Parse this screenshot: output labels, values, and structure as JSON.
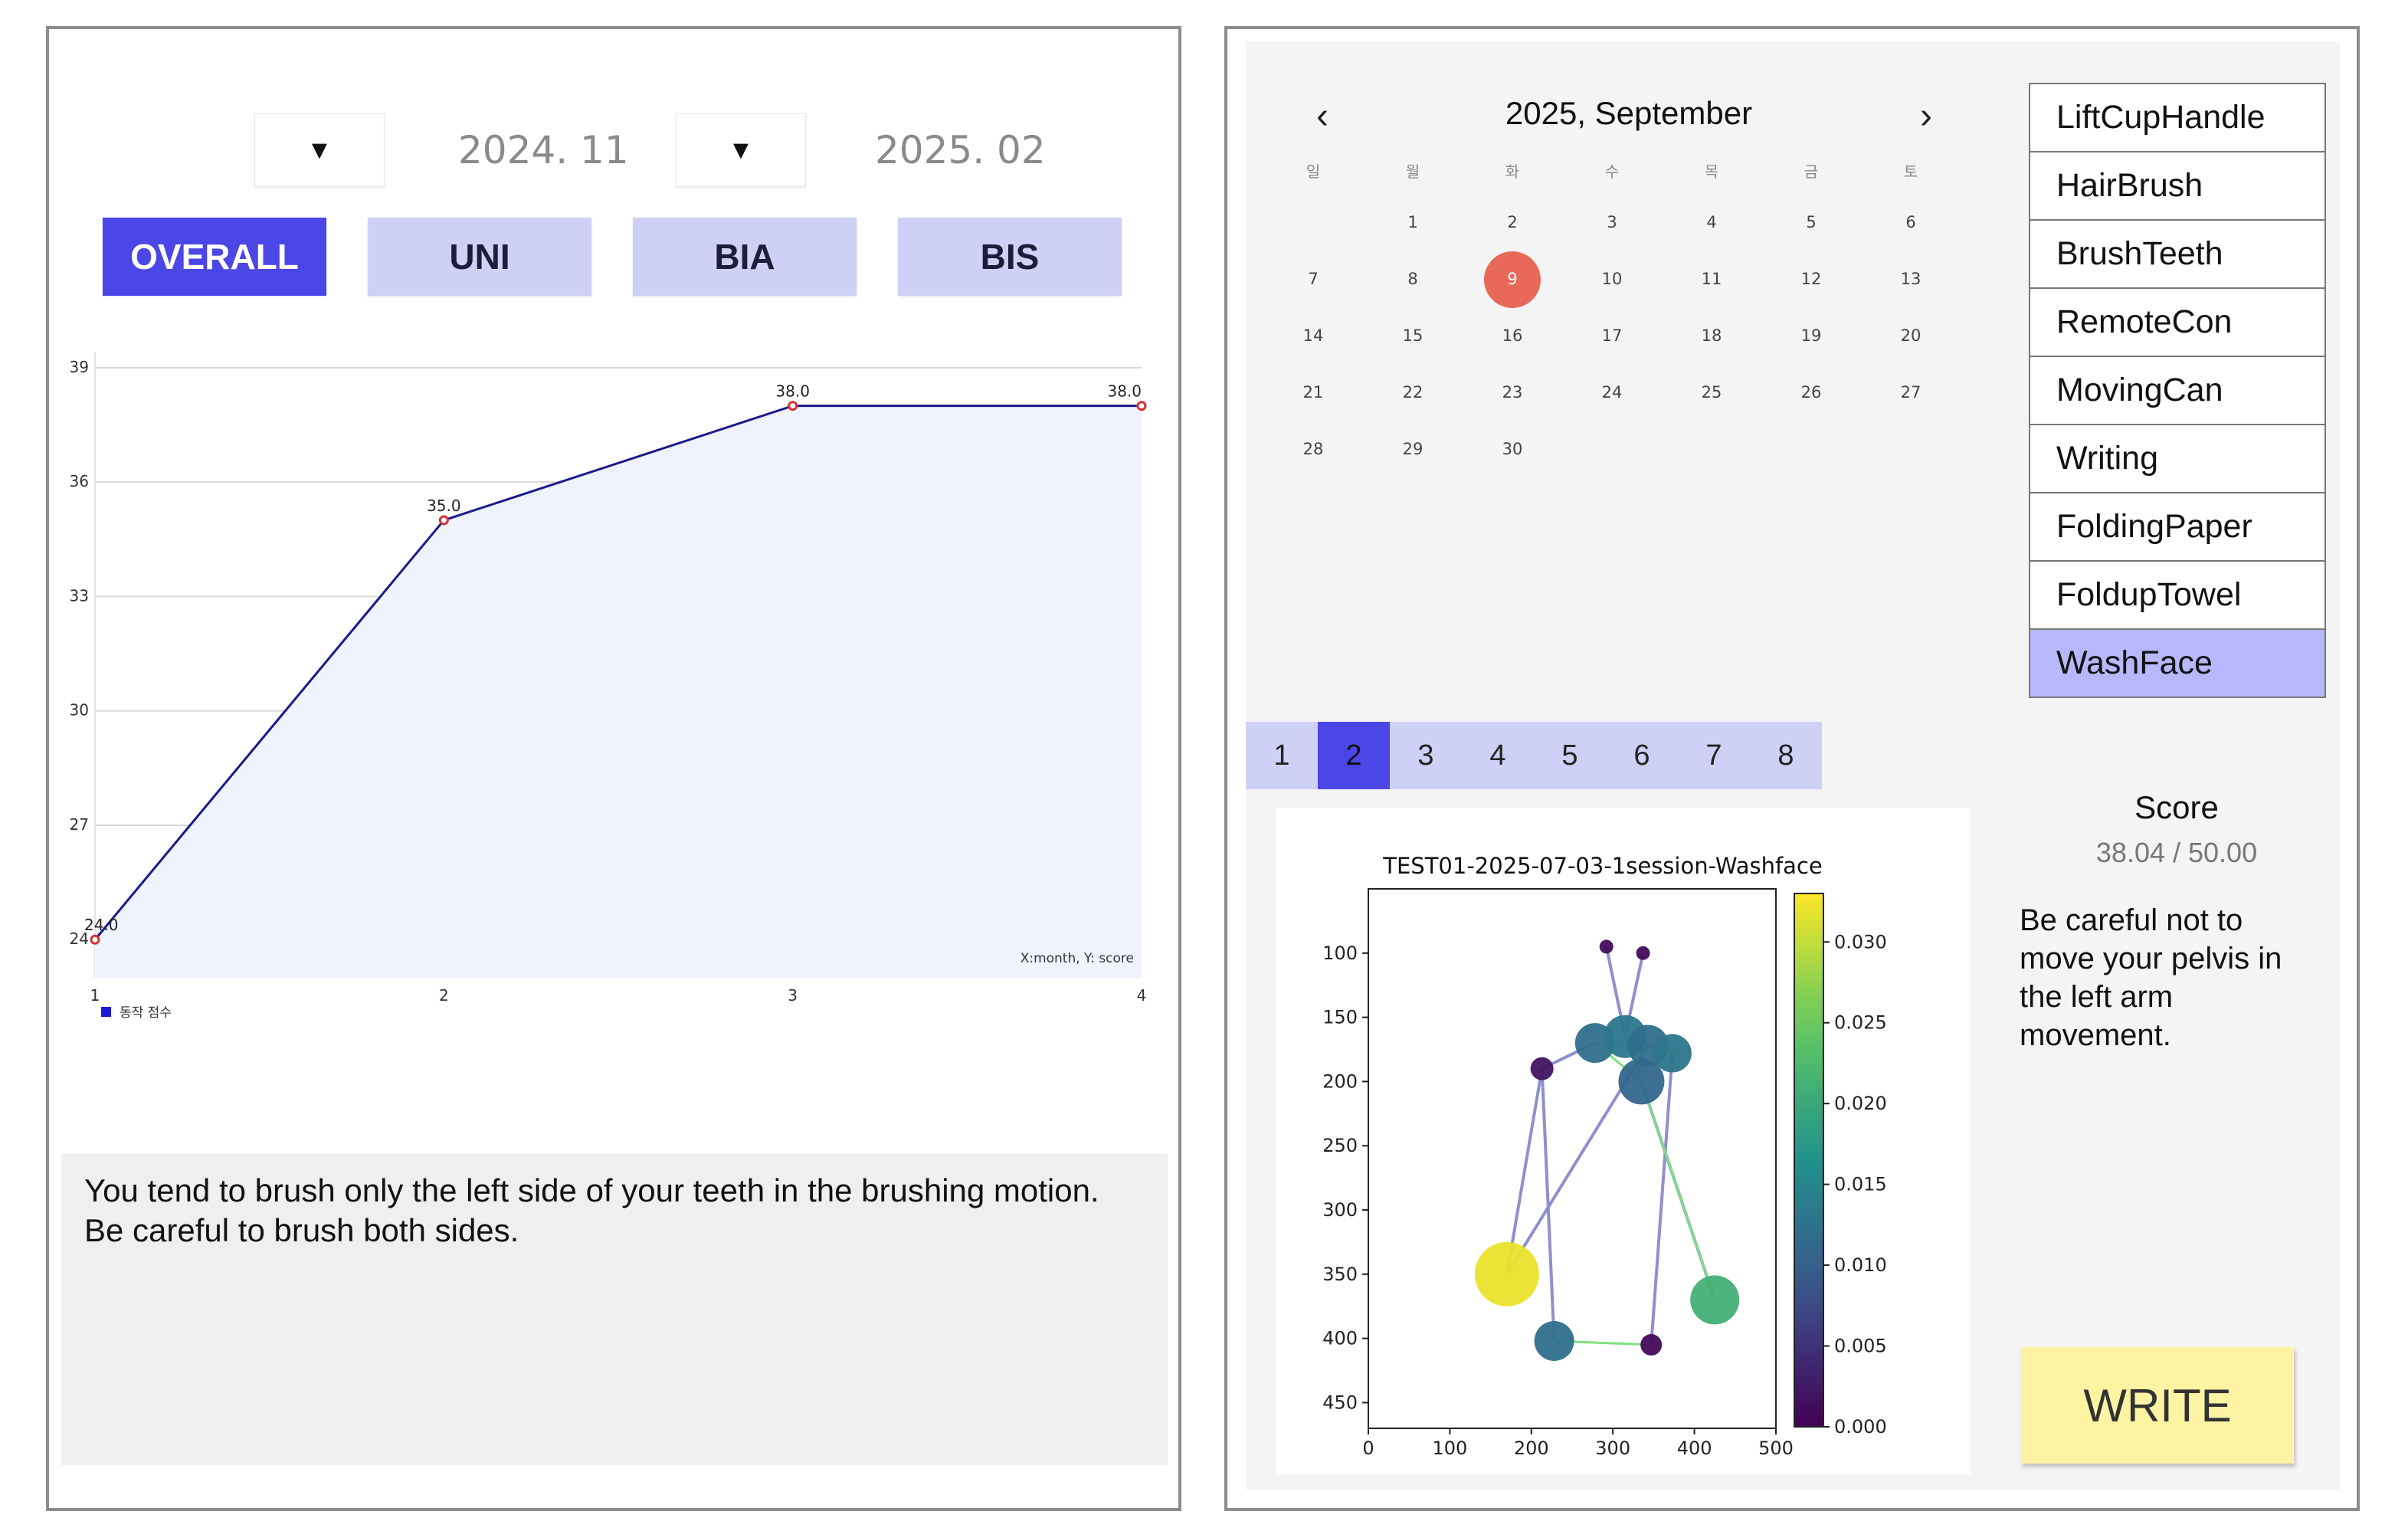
{
  "left": {
    "date_from": {
      "dropdown_glyph": "▼",
      "value": "2024. 11"
    },
    "date_to": {
      "dropdown_glyph": "▼",
      "value": "2025. 02"
    },
    "tabs": [
      {
        "label": "OVERALL",
        "active": true
      },
      {
        "label": "UNI",
        "active": false
      },
      {
        "label": "BIA",
        "active": false
      },
      {
        "label": "BIS",
        "active": false
      }
    ],
    "feedback": "You tend to brush only the left side of your teeth in the brushing motion. Be careful to brush both sides."
  },
  "chart_data": [
    {
      "type": "area",
      "x": [
        1,
        2,
        3,
        4
      ],
      "values": [
        24.0,
        35.0,
        38.0,
        38.0
      ],
      "point_labels": [
        "24.0",
        "35.0",
        "38.0",
        "38.0"
      ],
      "xticks": [
        "1",
        "2",
        "3",
        "4"
      ],
      "yticks": [
        "24",
        "27",
        "30",
        "33",
        "36",
        "39"
      ],
      "ylim": [
        23.0,
        39.4
      ],
      "annotation": "X:month, Y: score",
      "legend": {
        "position": "bottom-left",
        "entries": [
          {
            "label": "동작 점수",
            "color": "#1a1ad6"
          }
        ]
      },
      "grid": true,
      "colors": {
        "line": "#1a1a8c",
        "fill": "#eef3fd",
        "marker": "#d93030"
      }
    },
    {
      "type": "scatter",
      "title": "TEST01-2025-07-03-1session-Washface",
      "xticks": [
        "0",
        "100",
        "200",
        "300",
        "400",
        "500"
      ],
      "yticks": [
        "100",
        "150",
        "200",
        "250",
        "300",
        "350",
        "400",
        "450"
      ],
      "xlim": [
        0,
        500
      ],
      "ylim": [
        470,
        50
      ],
      "colorbar": {
        "ticks": [
          "0.000",
          "0.005",
          "0.010",
          "0.015",
          "0.020",
          "0.025",
          "0.030"
        ],
        "range": [
          0,
          0.033
        ]
      },
      "points": [
        {
          "x": 292,
          "y": 95,
          "v": 0.001,
          "s": 9
        },
        {
          "x": 337,
          "y": 100,
          "v": 0.001,
          "s": 9
        },
        {
          "x": 213,
          "y": 190,
          "v": 0.002,
          "s": 15
        },
        {
          "x": 278,
          "y": 170,
          "v": 0.012,
          "s": 26
        },
        {
          "x": 315,
          "y": 165,
          "v": 0.013,
          "s": 28
        },
        {
          "x": 343,
          "y": 172,
          "v": 0.012,
          "s": 27
        },
        {
          "x": 373,
          "y": 178,
          "v": 0.013,
          "s": 25
        },
        {
          "x": 335,
          "y": 200,
          "v": 0.011,
          "s": 30
        },
        {
          "x": 170,
          "y": 350,
          "v": 0.032,
          "s": 42
        },
        {
          "x": 425,
          "y": 370,
          "v": 0.021,
          "s": 32
        },
        {
          "x": 228,
          "y": 402,
          "v": 0.012,
          "s": 26
        },
        {
          "x": 347,
          "y": 405,
          "v": 0.001,
          "s": 14
        }
      ],
      "bones_blue": [
        [
          0,
          4
        ],
        [
          1,
          4
        ],
        [
          2,
          3
        ],
        [
          2,
          10
        ],
        [
          6,
          11
        ],
        [
          2,
          8
        ],
        [
          7,
          9
        ],
        [
          5,
          8
        ]
      ],
      "bones_green": [
        [
          10,
          11
        ],
        [
          3,
          7
        ],
        [
          4,
          7
        ],
        [
          5,
          6
        ],
        [
          3,
          6
        ],
        [
          7,
          9
        ]
      ]
    }
  ],
  "calendar": {
    "prev_glyph": "‹",
    "next_glyph": "›",
    "title": "2025, September",
    "weekdays": [
      "일",
      "월",
      "화",
      "수",
      "목",
      "금",
      "토"
    ],
    "weeks": [
      [
        "",
        "1",
        "2",
        "3",
        "4",
        "5",
        "6"
      ],
      [
        "7",
        "8",
        "9",
        "10",
        "11",
        "12",
        "13"
      ],
      [
        "14",
        "15",
        "16",
        "17",
        "18",
        "19",
        "20"
      ],
      [
        "21",
        "22",
        "23",
        "24",
        "25",
        "26",
        "27"
      ],
      [
        "28",
        "29",
        "30",
        "",
        "",
        "",
        ""
      ]
    ],
    "selected_day": "9",
    "today_color": "#e8685a"
  },
  "tasks": [
    {
      "label": "LiftCupHandle",
      "selected": false
    },
    {
      "label": "HairBrush",
      "selected": false
    },
    {
      "label": "BrushTeeth",
      "selected": false
    },
    {
      "label": "RemoteCon",
      "selected": false
    },
    {
      "label": "MovingCan",
      "selected": false
    },
    {
      "label": "Writing",
      "selected": false
    },
    {
      "label": "FoldingPaper",
      "selected": false
    },
    {
      "label": "FoldupTowel",
      "selected": false
    },
    {
      "label": "WashFace",
      "selected": true
    }
  ],
  "sessions": [
    {
      "label": "1",
      "active": false
    },
    {
      "label": "2",
      "active": true
    },
    {
      "label": "3",
      "active": false
    },
    {
      "label": "4",
      "active": false
    },
    {
      "label": "5",
      "active": false
    },
    {
      "label": "6",
      "active": false
    },
    {
      "label": "7",
      "active": false
    },
    {
      "label": "8",
      "active": false
    }
  ],
  "score": {
    "label": "Score",
    "value": "38.04 / 50.00",
    "comment": "Be careful not to move your pelvis in the left arm movement."
  },
  "write_button": {
    "label": "WRITE"
  }
}
